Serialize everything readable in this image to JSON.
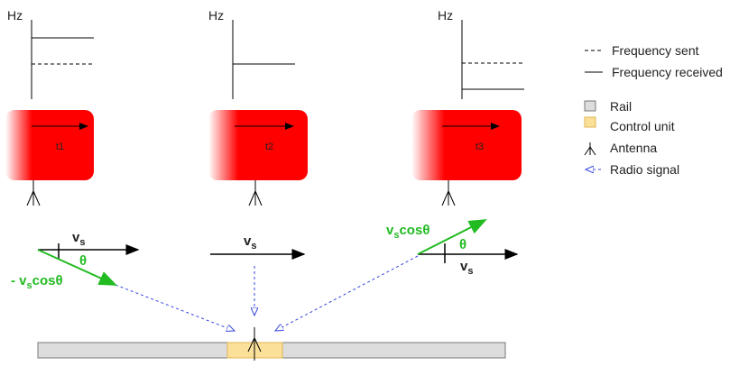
{
  "panels": [
    {
      "axis_label": "Hz",
      "train_label": "t1"
    },
    {
      "axis_label": "Hz",
      "train_label": "t2"
    },
    {
      "axis_label": "Hz",
      "train_label": "t3"
    }
  ],
  "legend": {
    "sent": "Frequency sent",
    "received": "Frequency received",
    "rail": "Rail",
    "control_unit": "Control unit",
    "antenna": "Antenna",
    "radio": "Radio signal"
  },
  "vectors": {
    "left": {
      "speed": [
        "v",
        "s"
      ],
      "angle": "θ",
      "component": [
        "- v",
        "s",
        "cosθ"
      ]
    },
    "middle": {
      "speed": [
        "v",
        "s"
      ]
    },
    "right": {
      "speed": [
        "v",
        "s"
      ],
      "angle": "θ",
      "component": [
        "v",
        "s",
        "cosθ"
      ]
    }
  }
}
